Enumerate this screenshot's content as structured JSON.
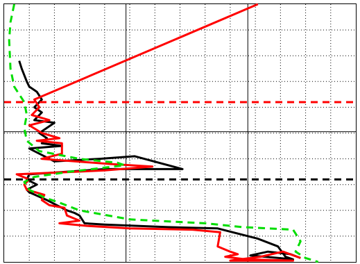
{
  "chart_data": {
    "type": "line",
    "title": "",
    "xlabel": "",
    "ylabel": "",
    "xlim": [
      0,
      14
    ],
    "ylim": [
      0,
      10
    ],
    "grid": "on",
    "grid_minor_step": 1,
    "grid_major_x": [
      0,
      4.85,
      9.7,
      14
    ],
    "grid_major_y": [
      0,
      5.05,
      10
    ],
    "colors": {
      "black": "#000000",
      "red": "#ff0000",
      "green": "#00dd00"
    },
    "series": [
      {
        "color": "#000000",
        "style": "solid",
        "points": [
          [
            0.6,
            7.8
          ],
          [
            0.7,
            7.5
          ],
          [
            0.9,
            7.0
          ],
          [
            1.0,
            6.8
          ],
          [
            1.3,
            6.6
          ],
          [
            1.5,
            6.3
          ],
          [
            1.2,
            6.0
          ],
          [
            1.5,
            5.8
          ],
          [
            1.2,
            5.5
          ],
          [
            2.0,
            5.4
          ],
          [
            1.4,
            5.0
          ],
          [
            1.7,
            4.8
          ],
          [
            1.5,
            4.6
          ],
          [
            2.3,
            4.5
          ],
          [
            1.0,
            4.4
          ],
          [
            1.4,
            4.2
          ],
          [
            2.0,
            3.9
          ],
          [
            3.8,
            4.0
          ],
          [
            5.2,
            4.1
          ],
          [
            7.1,
            3.6
          ],
          [
            4.0,
            3.6
          ],
          [
            1.0,
            3.4
          ],
          [
            0.9,
            3.2
          ],
          [
            1.3,
            3.0
          ],
          [
            0.9,
            2.8
          ],
          [
            1.0,
            2.7
          ],
          [
            1.7,
            2.4
          ],
          [
            2.1,
            2.2
          ],
          [
            2.5,
            2.0
          ],
          [
            2.8,
            1.9
          ],
          [
            3.0,
            1.8
          ],
          [
            3.2,
            1.5
          ],
          [
            4.0,
            1.45
          ],
          [
            6.5,
            1.35
          ],
          [
            8.5,
            1.3
          ],
          [
            9.3,
            1.1
          ],
          [
            10.1,
            0.9
          ],
          [
            10.9,
            0.6
          ],
          [
            11.2,
            0.2
          ],
          [
            11.5,
            0.1
          ],
          [
            9.8,
            0.25
          ],
          [
            10.5,
            0.4
          ],
          [
            11.4,
            0.3
          ],
          [
            11.8,
            0.15
          ]
        ]
      },
      {
        "color": "#ff0000",
        "style": "solid",
        "points": [
          [
            10.1,
            10.0
          ],
          [
            1.2,
            6.3
          ],
          [
            1.4,
            6.0
          ],
          [
            1.1,
            5.7
          ],
          [
            1.8,
            5.5
          ],
          [
            1.0,
            5.3
          ],
          [
            1.5,
            5.0
          ],
          [
            2.2,
            4.8
          ],
          [
            1.3,
            4.7
          ],
          [
            2.3,
            4.6
          ],
          [
            2.3,
            4.2
          ],
          [
            1.5,
            4.0
          ],
          [
            4.2,
            3.8
          ],
          [
            5.9,
            3.7
          ],
          [
            4.0,
            3.55
          ],
          [
            0.5,
            3.4
          ],
          [
            1.0,
            3.2
          ],
          [
            0.8,
            3.0
          ],
          [
            0.9,
            2.8
          ],
          [
            1.6,
            2.6
          ],
          [
            1.5,
            2.4
          ],
          [
            1.8,
            2.2
          ],
          [
            2.4,
            2.1
          ],
          [
            2.5,
            1.8
          ],
          [
            3.0,
            1.6
          ],
          [
            2.2,
            1.5
          ],
          [
            3.3,
            1.4
          ],
          [
            5.0,
            1.3
          ],
          [
            7.5,
            1.25
          ],
          [
            8.6,
            1.15
          ],
          [
            8.5,
            0.6
          ],
          [
            9.0,
            0.4
          ],
          [
            9.3,
            0.3
          ],
          [
            8.8,
            0.2
          ],
          [
            9.6,
            0.1
          ],
          [
            11.5,
            0.05
          ],
          [
            9.0,
            0.05
          ],
          [
            10.2,
            0.2
          ],
          [
            11.1,
            0.4
          ],
          [
            11.8,
            0.15
          ]
        ]
      },
      {
        "color": "#00dd00",
        "style": "dashed",
        "points": [
          [
            0.4,
            10.0
          ],
          [
            0.25,
            9.3
          ],
          [
            0.2,
            8.6
          ],
          [
            0.25,
            7.5
          ],
          [
            0.4,
            6.8
          ],
          [
            0.8,
            6.2
          ],
          [
            0.9,
            5.7
          ],
          [
            0.8,
            5.2
          ],
          [
            0.9,
            4.7
          ],
          [
            1.4,
            4.3
          ],
          [
            3.0,
            4.0
          ],
          [
            4.5,
            3.85
          ],
          [
            4.8,
            3.75
          ],
          [
            2.6,
            3.5
          ],
          [
            1.2,
            3.3
          ],
          [
            0.8,
            3.1
          ],
          [
            1.0,
            2.8
          ],
          [
            1.6,
            2.5
          ],
          [
            2.2,
            2.3
          ],
          [
            3.0,
            2.0
          ],
          [
            5.0,
            1.65
          ],
          [
            8.0,
            1.5
          ],
          [
            9.5,
            1.35
          ],
          [
            11.5,
            1.25
          ],
          [
            11.8,
            0.8
          ],
          [
            11.6,
            0.4
          ],
          [
            12.0,
            0.15
          ],
          [
            12.5,
            0.0
          ]
        ]
      },
      {
        "color": "#ff0000",
        "style": "dashed",
        "points": [
          [
            0,
            6.2
          ],
          [
            14,
            6.2
          ]
        ]
      },
      {
        "color": "#000000",
        "style": "dashed",
        "points": [
          [
            0,
            3.2
          ],
          [
            14,
            3.2
          ]
        ]
      }
    ]
  }
}
